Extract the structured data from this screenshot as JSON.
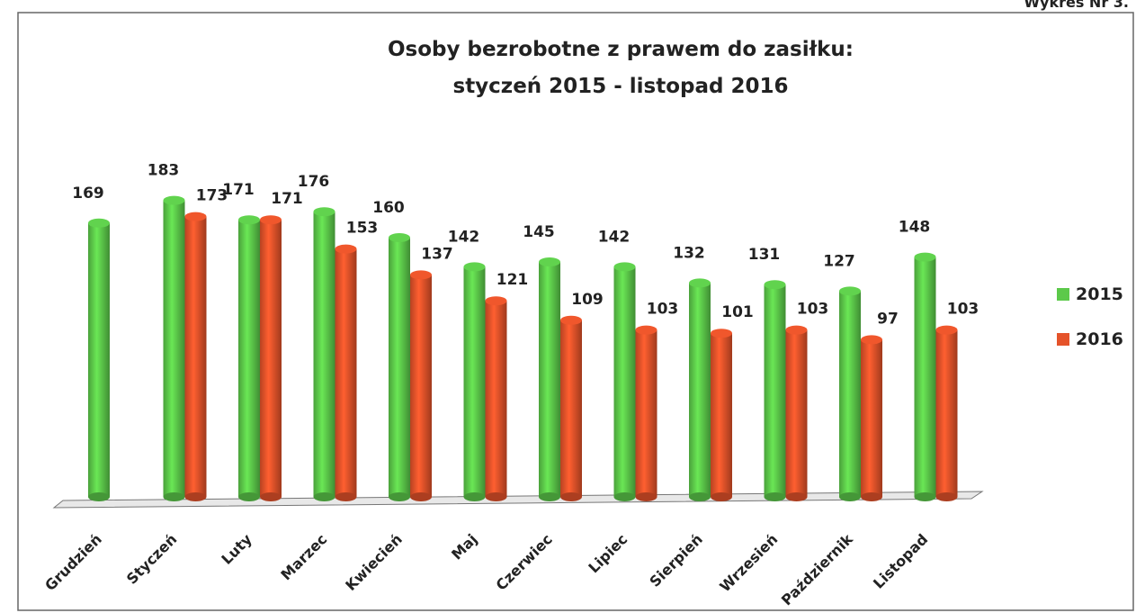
{
  "header": {
    "label": "Wykres Nr 3."
  },
  "chart_data": {
    "type": "bar3d",
    "title": [
      "Osoby bezrobotne z prawem do zasiłku:",
      "styczeń 2015 - listopad 2016"
    ],
    "categories": [
      "Grudzień",
      "Styczeń",
      "Luty",
      "Marzec",
      "Kwiecień",
      "Maj",
      "Czerwiec",
      "Lipiec",
      "Sierpień",
      "Wrzesień",
      "Październik",
      "Listopad"
    ],
    "series": [
      {
        "name": "2015",
        "color": "#5cc94a",
        "values": [
          169,
          183,
          171,
          176,
          160,
          142,
          145,
          142,
          132,
          131,
          127,
          148
        ]
      },
      {
        "name": "2016",
        "color": "#e5532a",
        "values": [
          null,
          173,
          171,
          153,
          137,
          121,
          109,
          103,
          101,
          103,
          97,
          103
        ]
      }
    ],
    "legend": "right"
  }
}
